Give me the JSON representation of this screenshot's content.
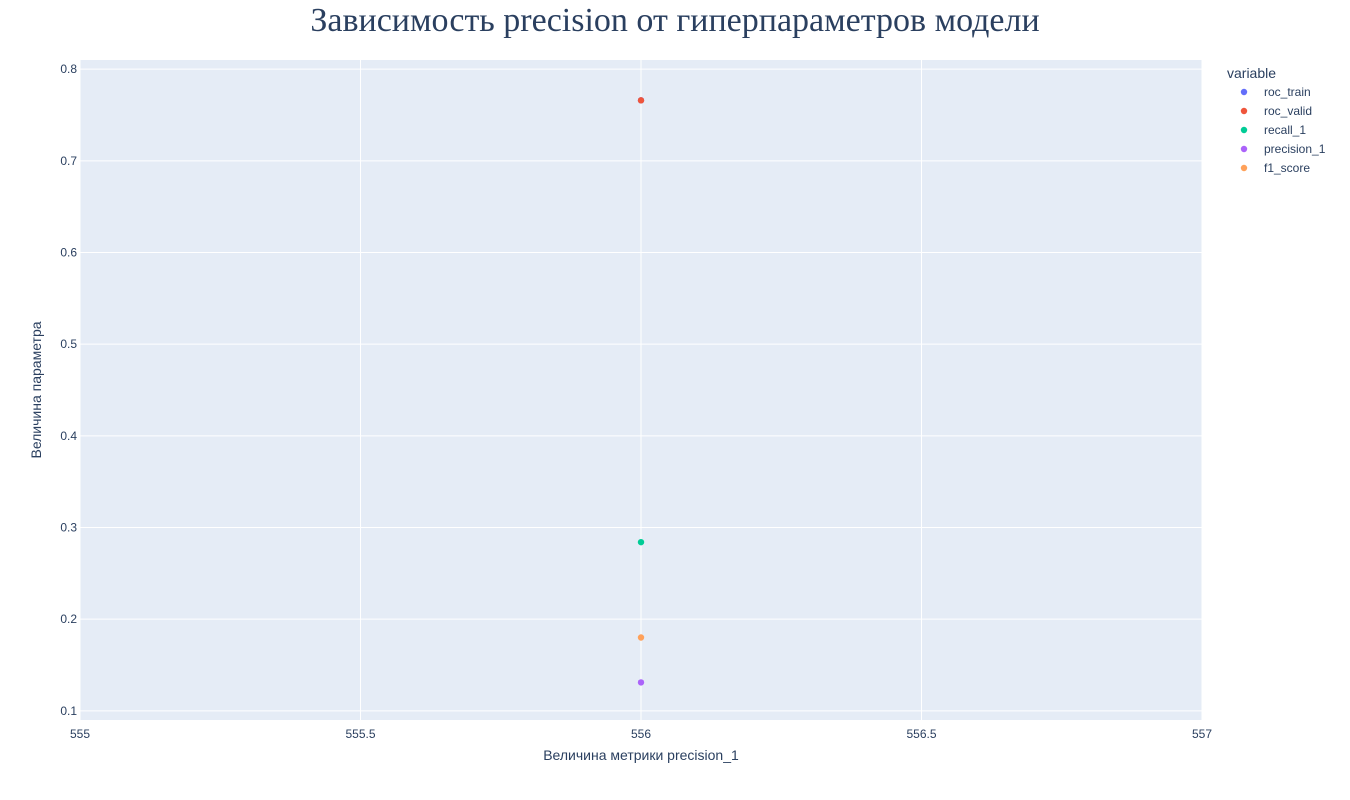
{
  "chart_data": {
    "type": "scatter",
    "title": "Зависимость precision от гиперпараметров модели",
    "xlabel": "Величина метрики precision_1",
    "ylabel": "Величина параметра",
    "xlim": [
      555,
      557
    ],
    "ylim": [
      0.09,
      0.81
    ],
    "x_ticks": [
      555,
      555.5,
      556,
      556.5,
      557
    ],
    "x_tick_labels": [
      "555",
      "555.5",
      "556",
      "556.5",
      "557"
    ],
    "y_ticks": [
      0.1,
      0.2,
      0.3,
      0.4,
      0.5,
      0.6,
      0.7,
      0.8
    ],
    "y_tick_labels": [
      "0.1",
      "0.2",
      "0.3",
      "0.4",
      "0.5",
      "0.6",
      "0.7",
      "0.8"
    ],
    "grid": true,
    "legend": {
      "title": "variable",
      "placement": "top-right outside"
    },
    "series": [
      {
        "name": "roc_train",
        "color": "#636efa",
        "x": [
          556
        ],
        "y": [
          0.766
        ]
      },
      {
        "name": "roc_valid",
        "color": "#EF553B",
        "x": [
          556
        ],
        "y": [
          0.766
        ]
      },
      {
        "name": "recall_1",
        "color": "#00cc96",
        "x": [
          556
        ],
        "y": [
          0.284
        ]
      },
      {
        "name": "precision_1",
        "color": "#ab63fa",
        "x": [
          556
        ],
        "y": [
          0.131
        ]
      },
      {
        "name": "f1_score",
        "color": "#FFA15A",
        "x": [
          556
        ],
        "y": [
          0.18
        ]
      }
    ],
    "colors": {
      "plot_bg": "#e5ecf6",
      "grid": "#ffffff",
      "text": "#2a3f5f"
    }
  }
}
